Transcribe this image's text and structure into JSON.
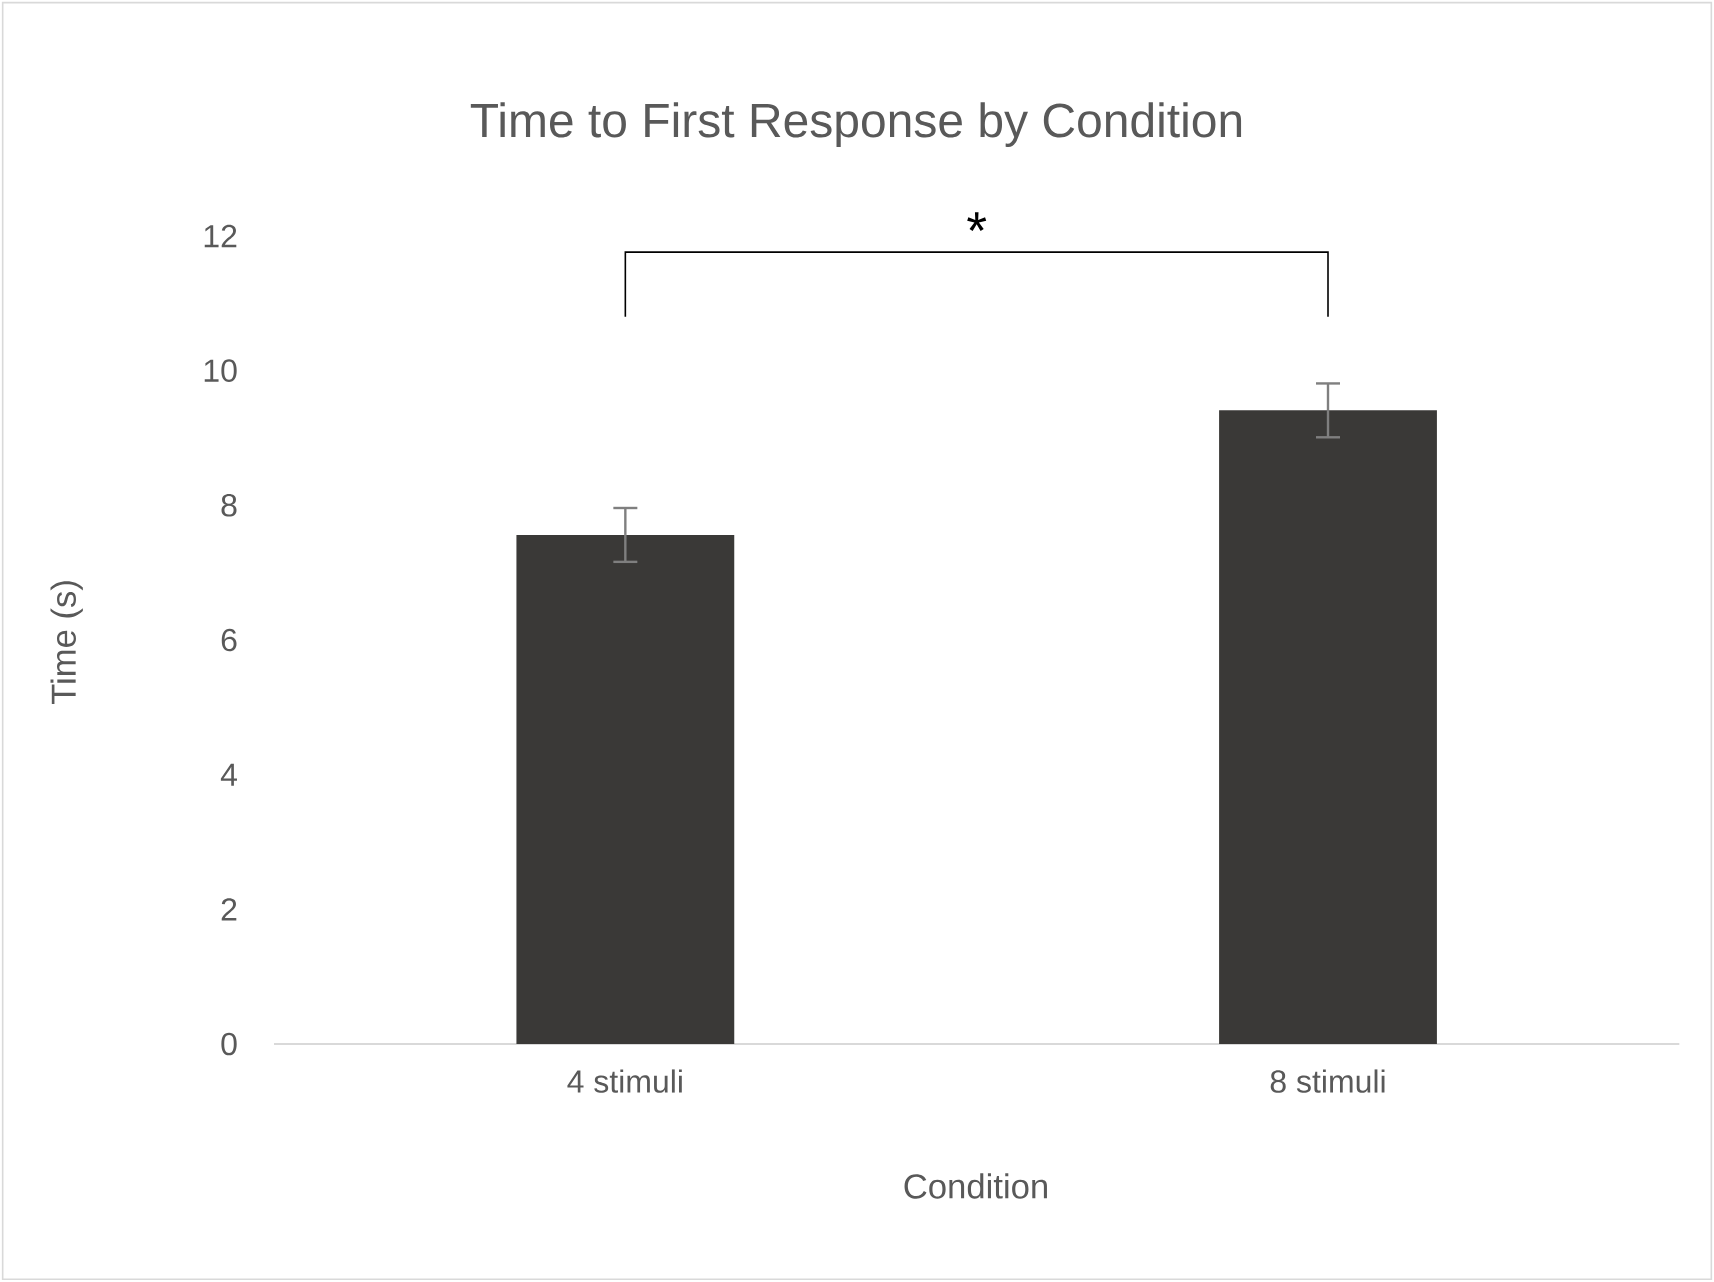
{
  "chart_data": {
    "type": "bar",
    "title": "Time to First Response by Condition",
    "xlabel": "Condition",
    "ylabel": "Time (s)",
    "categories": [
      "4 stimuli",
      "8 stimuli"
    ],
    "values": [
      7.56,
      9.41
    ],
    "errors": [
      0.4,
      0.4
    ],
    "color": "#3a3937",
    "ylim": [
      0,
      12
    ],
    "yticks": [
      0,
      2,
      4,
      6,
      8,
      10,
      12
    ],
    "annotations": [
      "*"
    ]
  }
}
